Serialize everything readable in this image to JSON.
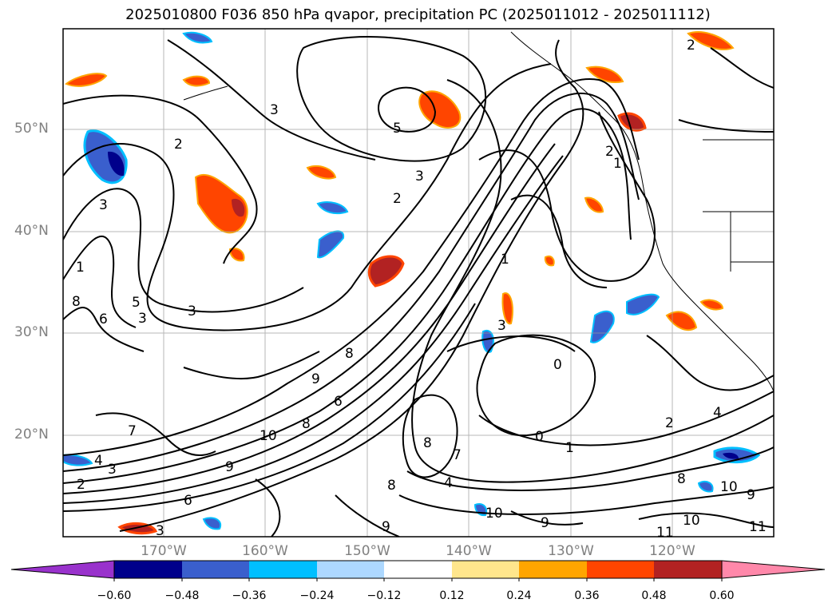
{
  "title": "2025010800 F036 850 hPa qvapor, precipitation PC (2025011012 - 2025011112)",
  "map": {
    "lat_labels": [
      "50°N",
      "40°N",
      "30°N",
      "20°N"
    ],
    "lon_labels": [
      "170°W",
      "160°W",
      "150°W",
      "140°W",
      "130°W",
      "120°W"
    ],
    "contour_labels": [
      "2",
      "3",
      "5",
      "3",
      "2",
      "2",
      "1",
      "1",
      "3",
      "6",
      "5",
      "3",
      "8",
      "2",
      "1",
      "3",
      "8",
      "9",
      "6",
      "10",
      "8",
      "9",
      "3",
      "0",
      "2",
      "4",
      "0",
      "1",
      "8",
      "7",
      "4",
      "10",
      "9",
      "10",
      "8",
      "11",
      "3",
      "2",
      "4",
      "3",
      "6",
      "9",
      "10",
      "11",
      "7",
      "8",
      "9"
    ]
  },
  "colorbar": {
    "ticks": [
      "−0.60",
      "−0.48",
      "−0.36",
      "−0.24",
      "−0.12",
      "0.12",
      "0.24",
      "0.36",
      "0.48",
      "0.60"
    ],
    "colors": [
      "#9932cc",
      "#00008b",
      "#3a5fcd",
      "#00bfff",
      "#add8ff",
      "#ffffff",
      "#ffe68c",
      "#ffa500",
      "#ff4500",
      "#b22222",
      "#ff88aa"
    ]
  }
}
